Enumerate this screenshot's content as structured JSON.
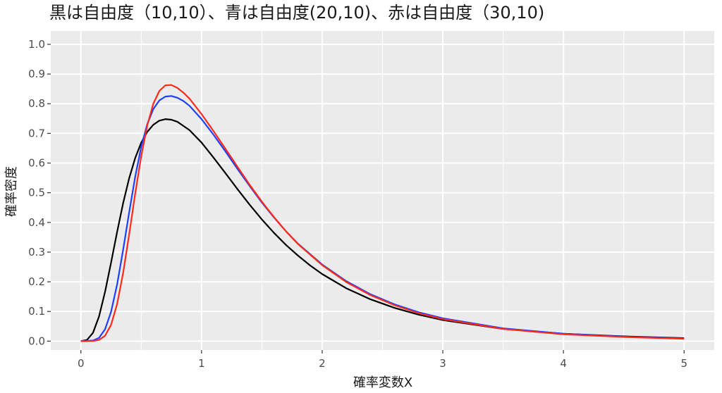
{
  "chart_data": {
    "type": "line",
    "title": "黒は自由度（10,10）、青は自由度(20,10)、赤は自由度（30,10)",
    "xlabel": "確率変数X",
    "ylabel": "確率密度",
    "xlim": [
      -0.25,
      5.25
    ],
    "ylim": [
      -0.03,
      1.045
    ],
    "x_ticks": [
      0,
      1,
      2,
      3,
      4,
      5
    ],
    "x_tick_labels": [
      "0",
      "1",
      "2",
      "3",
      "4",
      "5"
    ],
    "y_ticks": [
      0.0,
      0.1,
      0.2,
      0.3,
      0.4,
      0.5,
      0.6,
      0.7,
      0.8,
      0.9,
      1.0
    ],
    "y_tick_labels": [
      "0.0",
      "0.1",
      "0.2",
      "0.3",
      "0.4",
      "0.5",
      "0.6",
      "0.7",
      "0.8",
      "0.9",
      "1.0"
    ],
    "grid": true,
    "background": "#ebebeb",
    "grid_color": "#ffffff",
    "legend": "none",
    "series": [
      {
        "color": "#000000",
        "x": [
          0,
          0.05,
          0.1,
          0.15,
          0.2,
          0.25,
          0.3,
          0.35,
          0.4,
          0.45,
          0.5,
          0.55,
          0.6,
          0.65,
          0.7,
          0.75,
          0.8,
          0.9,
          1.0,
          1.1,
          1.2,
          1.3,
          1.4,
          1.5,
          1.6,
          1.7,
          1.8,
          1.9,
          2.0,
          2.2,
          2.4,
          2.6,
          2.8,
          3.0,
          3.5,
          4.0,
          4.5,
          5.0
        ],
        "values": [
          0,
          0.004,
          0.028,
          0.083,
          0.166,
          0.265,
          0.368,
          0.465,
          0.549,
          0.617,
          0.669,
          0.705,
          0.729,
          0.743,
          0.748,
          0.746,
          0.739,
          0.711,
          0.669,
          0.618,
          0.565,
          0.511,
          0.459,
          0.41,
          0.365,
          0.324,
          0.288,
          0.255,
          0.226,
          0.178,
          0.141,
          0.112,
          0.089,
          0.071,
          0.041,
          0.025,
          0.016,
          0.01
        ]
      },
      {
        "color": "#1f3fff",
        "x": [
          0,
          0.1,
          0.15,
          0.2,
          0.25,
          0.3,
          0.35,
          0.4,
          0.45,
          0.5,
          0.55,
          0.6,
          0.65,
          0.7,
          0.75,
          0.8,
          0.85,
          0.9,
          1.0,
          1.1,
          1.2,
          1.3,
          1.4,
          1.5,
          1.6,
          1.7,
          1.8,
          2.0,
          2.2,
          2.4,
          2.6,
          2.8,
          3.0,
          3.5,
          4.0,
          4.5,
          5.0
        ],
        "values": [
          0,
          0.002,
          0.011,
          0.04,
          0.099,
          0.191,
          0.308,
          0.434,
          0.554,
          0.655,
          0.731,
          0.782,
          0.811,
          0.824,
          0.826,
          0.82,
          0.809,
          0.793,
          0.748,
          0.695,
          0.638,
          0.579,
          0.522,
          0.467,
          0.417,
          0.37,
          0.328,
          0.258,
          0.202,
          0.158,
          0.124,
          0.097,
          0.077,
          0.043,
          0.025,
          0.015,
          0.009
        ]
      },
      {
        "color": "#ff2a1a",
        "x": [
          0,
          0.1,
          0.15,
          0.2,
          0.25,
          0.3,
          0.35,
          0.4,
          0.45,
          0.5,
          0.55,
          0.6,
          0.65,
          0.7,
          0.75,
          0.8,
          0.85,
          0.9,
          1.0,
          1.1,
          1.2,
          1.3,
          1.4,
          1.5,
          1.6,
          1.7,
          1.8,
          2.0,
          2.2,
          2.4,
          2.6,
          2.8,
          3.0,
          3.5,
          4.0,
          4.5,
          5.0
        ],
        "values": [
          0,
          0.0005,
          0.004,
          0.018,
          0.055,
          0.125,
          0.23,
          0.36,
          0.497,
          0.624,
          0.727,
          0.8,
          0.843,
          0.862,
          0.863,
          0.853,
          0.837,
          0.817,
          0.765,
          0.707,
          0.647,
          0.586,
          0.526,
          0.47,
          0.418,
          0.37,
          0.327,
          0.256,
          0.199,
          0.155,
          0.121,
          0.094,
          0.074,
          0.041,
          0.023,
          0.014,
          0.008
        ]
      }
    ]
  }
}
